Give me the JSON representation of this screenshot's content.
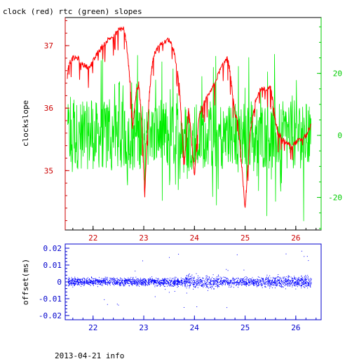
{
  "title": "clock (red) rtc (green) slopes",
  "footer": "2013-04-21 info",
  "colors": {
    "red": "#ff0000",
    "green": "#00ee00",
    "blue": "#0000ff",
    "red_axis": "#cc0000",
    "green_axis": "#00cc00",
    "blue_axis": "#0000cc"
  },
  "chart_data": [
    {
      "type": "line",
      "ylabel": "clockslope",
      "xlim": [
        21.45,
        26.5
      ],
      "x_ticks": [
        "22",
        "23",
        "24",
        "25",
        "26"
      ],
      "left_axis": {
        "ylim": [
          34.05,
          37.45
        ],
        "ticks": [
          "35",
          "36",
          "37"
        ]
      },
      "right_axis": {
        "ylim": [
          -30.5,
          38
        ],
        "ticks": [
          "-20",
          "0",
          "20"
        ]
      },
      "series": [
        {
          "axis": "left",
          "x": [
            21.49,
            21.52,
            21.6,
            21.7,
            21.8,
            21.9,
            22.0,
            22.1,
            22.2,
            22.3,
            22.4,
            22.5,
            22.6,
            22.65,
            22.7,
            22.74,
            22.78,
            22.82,
            22.86,
            22.9,
            22.94,
            22.98,
            23.02,
            23.06,
            23.1,
            23.15,
            23.2,
            23.3,
            23.4,
            23.5,
            23.6,
            23.7,
            23.75,
            23.8,
            23.84,
            23.88,
            23.92,
            23.96,
            24.0,
            24.05,
            24.1,
            24.2,
            24.3,
            24.4,
            24.5,
            24.6,
            24.65,
            24.7,
            24.74,
            24.8,
            24.85,
            24.9,
            24.95,
            25.0,
            25.05,
            25.1,
            25.2,
            25.3,
            25.4,
            25.5,
            25.55,
            25.6,
            25.65,
            25.7,
            25.8,
            25.9,
            26.0,
            26.1,
            26.2,
            26.3
          ],
          "y": [
            36.5,
            36.7,
            36.8,
            36.8,
            36.7,
            36.65,
            36.75,
            36.9,
            37.0,
            37.1,
            37.15,
            37.25,
            37.28,
            37.1,
            36.7,
            36.3,
            35.7,
            36.0,
            36.3,
            36.4,
            36.0,
            35.4,
            34.6,
            35.4,
            36.1,
            36.6,
            36.85,
            37.0,
            37.05,
            37.1,
            36.9,
            36.4,
            35.7,
            35.1,
            35.5,
            36.0,
            35.7,
            35.3,
            34.9,
            35.5,
            35.9,
            36.1,
            36.25,
            36.4,
            36.6,
            36.75,
            36.8,
            36.6,
            36.3,
            35.9,
            35.8,
            35.4,
            34.9,
            34.4,
            35.0,
            35.6,
            36.1,
            36.3,
            36.3,
            36.35,
            36.1,
            35.8,
            35.6,
            35.55,
            35.45,
            35.4,
            35.45,
            35.5,
            35.55,
            35.75
          ]
        },
        {
          "axis": "right",
          "envelope": "noise band between approx -10 and +10 with spikes to about +/-30",
          "x": [
            21.5,
            21.7,
            22.0,
            22.5,
            23.0,
            23.5,
            24.0,
            24.5,
            25.0,
            25.5,
            26.0,
            26.3
          ],
          "y": [
            0,
            0,
            0,
            0,
            0,
            0,
            0,
            0,
            0,
            0,
            0,
            0
          ]
        }
      ]
    },
    {
      "type": "scatter",
      "ylabel": "offset(ms)",
      "xlim": [
        21.45,
        26.5
      ],
      "ylim": [
        -0.0225,
        0.0225
      ],
      "x_ticks": [
        "22",
        "23",
        "24",
        "25",
        "26"
      ],
      "y_ticks": [
        "0.02",
        "0.01",
        "0",
        "-0.01",
        "-0.02"
      ],
      "series": [
        {
          "envelope": "dense points centered near 0 with spread about +/-0.003 and scattered outliers up to about +/-0.02",
          "x": [
            21.5,
            22.0,
            22.5,
            23.0,
            23.5,
            24.0,
            24.5,
            25.0,
            25.5,
            26.0,
            26.3
          ],
          "y": [
            0,
            0,
            0,
            0,
            0,
            0,
            0,
            0,
            0,
            0,
            0
          ]
        }
      ]
    }
  ]
}
